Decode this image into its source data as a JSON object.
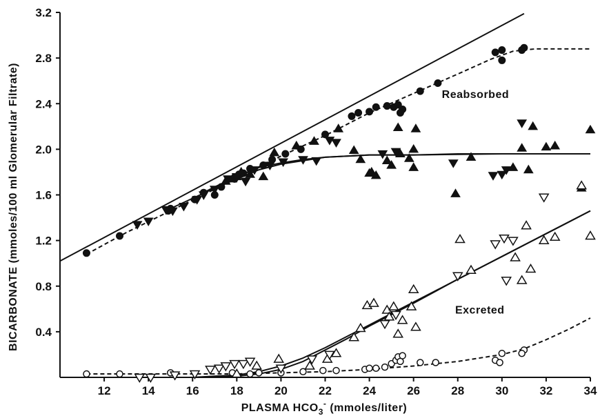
{
  "chart_data": {
    "type": "scatter",
    "title": "",
    "xlabel": "PLASMA HCO",
    "xlabel_sub": "3",
    "xlabel_sup": "-",
    "xlabel_rest": " (mmoles/liter)",
    "ylabel": "BICARBONATE (mmoles/100 ml Glomerular Filtrate)",
    "xlim": [
      10,
      34
    ],
    "ylim": [
      0,
      3.2
    ],
    "xticks": [
      12,
      14,
      16,
      18,
      20,
      22,
      24,
      26,
      28,
      30,
      32,
      34
    ],
    "yticks": [
      0.4,
      0.8,
      1.2,
      1.6,
      2.0,
      2.4,
      2.8,
      3.2
    ],
    "ytick_labels": [
      "0.4",
      "0.8",
      "1.2",
      "1.6",
      "2.0",
      "2.4",
      "2.8",
      "3.2"
    ],
    "grid": false,
    "legend": "none",
    "annotations": [
      {
        "text": "Reabsorbed",
        "x": 28.8,
        "y": 2.45
      },
      {
        "text": "Excreted",
        "x": 29.0,
        "y": 0.56
      }
    ],
    "series": [
      {
        "marker": "filled-circle",
        "x": [
          11.2,
          12.7,
          14.9,
          15.0,
          16.1,
          16.5,
          17.0,
          17.3,
          17.9,
          18.1,
          18.3,
          18.6,
          19.2,
          19.6,
          20.2,
          20.9,
          22.0,
          23.2,
          23.5,
          24.0,
          24.3,
          24.8,
          25.1,
          25.3,
          25.5,
          25.4,
          26.3,
          27.1,
          29.7,
          30.0,
          30.0,
          30.9,
          31.0
        ],
        "y": [
          1.09,
          1.24,
          1.46,
          1.48,
          1.56,
          1.62,
          1.6,
          1.67,
          1.74,
          1.78,
          1.79,
          1.83,
          1.86,
          1.91,
          1.96,
          2.0,
          2.13,
          2.29,
          2.32,
          2.33,
          2.37,
          2.38,
          2.37,
          2.39,
          2.35,
          2.32,
          2.51,
          2.58,
          2.85,
          2.87,
          2.78,
          2.87,
          2.89
        ]
      },
      {
        "marker": "filled-triangle-up",
        "x": [
          17.5,
          17.8,
          18.0,
          18.2,
          18.6,
          19.2,
          19.7,
          20.7,
          21.5,
          22.6,
          23.3,
          23.6,
          24.0,
          24.1,
          24.3,
          24.8,
          25.0,
          25.3,
          25.4,
          25.8,
          26.1,
          26.0,
          26.0,
          27.9,
          28.6,
          30.9,
          30.5,
          31.2,
          31.4,
          32.0,
          32.4,
          34.0,
          33.6
        ],
        "y": [
          1.72,
          1.74,
          1.76,
          1.8,
          1.78,
          1.76,
          1.97,
          2.03,
          2.07,
          2.18,
          1.99,
          1.91,
          1.79,
          1.8,
          1.77,
          1.9,
          1.86,
          2.19,
          1.96,
          1.92,
          2.18,
          2.0,
          1.84,
          1.61,
          1.93,
          2.01,
          1.84,
          1.82,
          2.2,
          2.02,
          2.03,
          2.17,
          1.66
        ]
      },
      {
        "marker": "filled-triangle-down",
        "x": [
          13.5,
          14.0,
          14.8,
          15.1,
          15.6,
          16.2,
          16.5,
          17.0,
          17.6,
          18.0,
          18.4,
          18.8,
          19.5,
          20.1,
          21.0,
          21.6,
          22.2,
          22.5,
          24.6,
          25.2,
          27.8,
          29.6,
          30.0,
          30.2,
          30.9
        ],
        "y": [
          1.34,
          1.37,
          1.47,
          1.46,
          1.5,
          1.56,
          1.6,
          1.65,
          1.74,
          1.76,
          1.72,
          1.82,
          1.86,
          1.89,
          1.91,
          1.9,
          2.08,
          2.06,
          1.96,
          1.98,
          1.88,
          1.77,
          1.78,
          1.82,
          2.23
        ]
      },
      {
        "marker": "open-circle",
        "x": [
          11.2,
          12.7,
          15.0,
          17.8,
          18.6,
          19.0,
          20.0,
          21.0,
          21.9,
          22.5,
          23.8,
          24.0,
          24.3,
          24.7,
          25.0,
          25.2,
          25.3,
          25.4,
          25.5,
          26.3,
          27.0,
          29.7,
          29.9,
          30.0,
          31.0,
          30.9
        ],
        "y": [
          0.03,
          0.03,
          0.04,
          0.04,
          0.03,
          0.04,
          0.04,
          0.05,
          0.06,
          0.06,
          0.07,
          0.08,
          0.08,
          0.09,
          0.12,
          0.15,
          0.18,
          0.14,
          0.19,
          0.13,
          0.13,
          0.15,
          0.13,
          0.21,
          0.24,
          0.21
        ]
      },
      {
        "marker": "open-triangle-up",
        "x": [
          18.0,
          18.9,
          19.9,
          21.3,
          22.1,
          22.5,
          23.3,
          23.6,
          23.9,
          24.2,
          24.8,
          24.9,
          25.1,
          25.3,
          25.5,
          25.9,
          26.0,
          26.1,
          28.1,
          28.6,
          30.6,
          30.9,
          31.1,
          31.3,
          31.9,
          32.4,
          33.6,
          34.0
        ],
        "y": [
          0.03,
          0.1,
          0.16,
          0.1,
          0.16,
          0.21,
          0.35,
          0.43,
          0.63,
          0.65,
          0.59,
          0.53,
          0.62,
          0.38,
          0.5,
          0.62,
          0.77,
          0.44,
          1.21,
          0.94,
          1.05,
          0.85,
          1.33,
          0.95,
          1.2,
          1.23,
          1.68,
          1.24
        ]
      },
      {
        "marker": "open-triangle-down",
        "x": [
          13.6,
          14.1,
          15.2,
          16.1,
          16.8,
          17.2,
          17.5,
          17.9,
          18.3,
          18.6,
          20.0,
          21.4,
          22.2,
          24.7,
          25.2,
          28.0,
          29.7,
          30.1,
          30.5,
          30.2,
          31.9
        ],
        "y": [
          0.0,
          0.0,
          0.02,
          0.03,
          0.07,
          0.08,
          0.1,
          0.12,
          0.12,
          0.14,
          0.08,
          0.16,
          0.2,
          0.47,
          0.55,
          0.89,
          1.17,
          1.22,
          1.2,
          0.85,
          1.58
        ]
      }
    ],
    "curves": [
      {
        "style": "solid",
        "x": [
          10,
          31
        ],
        "y": [
          1.02,
          3.19
        ]
      },
      {
        "style": "dashed",
        "x": [
          11.2,
          13,
          15,
          17,
          18.5,
          20,
          22,
          24,
          26,
          28,
          29.5,
          30.5,
          31.5,
          33,
          34
        ],
        "y": [
          1.08,
          1.27,
          1.46,
          1.65,
          1.8,
          1.94,
          2.12,
          2.32,
          2.49,
          2.66,
          2.79,
          2.86,
          2.88,
          2.88,
          2.88
        ]
      },
      {
        "style": "solid",
        "x": [
          15,
          16,
          17,
          18,
          19,
          20,
          21,
          22,
          23,
          24,
          26,
          30,
          34
        ],
        "y": [
          1.48,
          1.57,
          1.66,
          1.74,
          1.82,
          1.87,
          1.9,
          1.93,
          1.94,
          1.95,
          1.95,
          1.96,
          1.96
        ]
      },
      {
        "style": "solid",
        "x": [
          16.5,
          17,
          18,
          19,
          20,
          21,
          22,
          23,
          24,
          26,
          28,
          30,
          32,
          34
        ],
        "y": [
          1.62,
          1.67,
          1.76,
          1.84,
          1.88,
          1.91,
          1.93,
          1.94,
          1.95,
          1.95,
          1.96,
          1.96,
          1.96,
          1.96
        ]
      },
      {
        "style": "dashed",
        "x": [
          11.2,
          14,
          16,
          18,
          20,
          22,
          24,
          26,
          28,
          30,
          31,
          32,
          33,
          34
        ],
        "y": [
          0.03,
          0.03,
          0.03,
          0.03,
          0.04,
          0.05,
          0.07,
          0.1,
          0.14,
          0.2,
          0.25,
          0.33,
          0.42,
          0.52
        ]
      },
      {
        "style": "solid",
        "x": [
          14,
          16,
          17,
          18,
          19,
          20,
          21,
          22,
          23,
          24,
          25,
          26,
          27,
          28,
          29,
          30,
          31,
          32,
          33,
          34
        ],
        "y": [
          0.0,
          0.0,
          0.01,
          0.02,
          0.05,
          0.1,
          0.17,
          0.26,
          0.36,
          0.46,
          0.56,
          0.66,
          0.76,
          0.86,
          0.96,
          1.06,
          1.16,
          1.26,
          1.36,
          1.46
        ]
      },
      {
        "style": "solid",
        "x": [
          16,
          17,
          18,
          19,
          20,
          21,
          22,
          23,
          24,
          25,
          26,
          28,
          30,
          32,
          34
        ],
        "y": [
          0.0,
          0.0,
          0.01,
          0.03,
          0.07,
          0.14,
          0.24,
          0.34,
          0.45,
          0.55,
          0.65,
          0.86,
          1.06,
          1.26,
          1.46
        ]
      }
    ]
  }
}
